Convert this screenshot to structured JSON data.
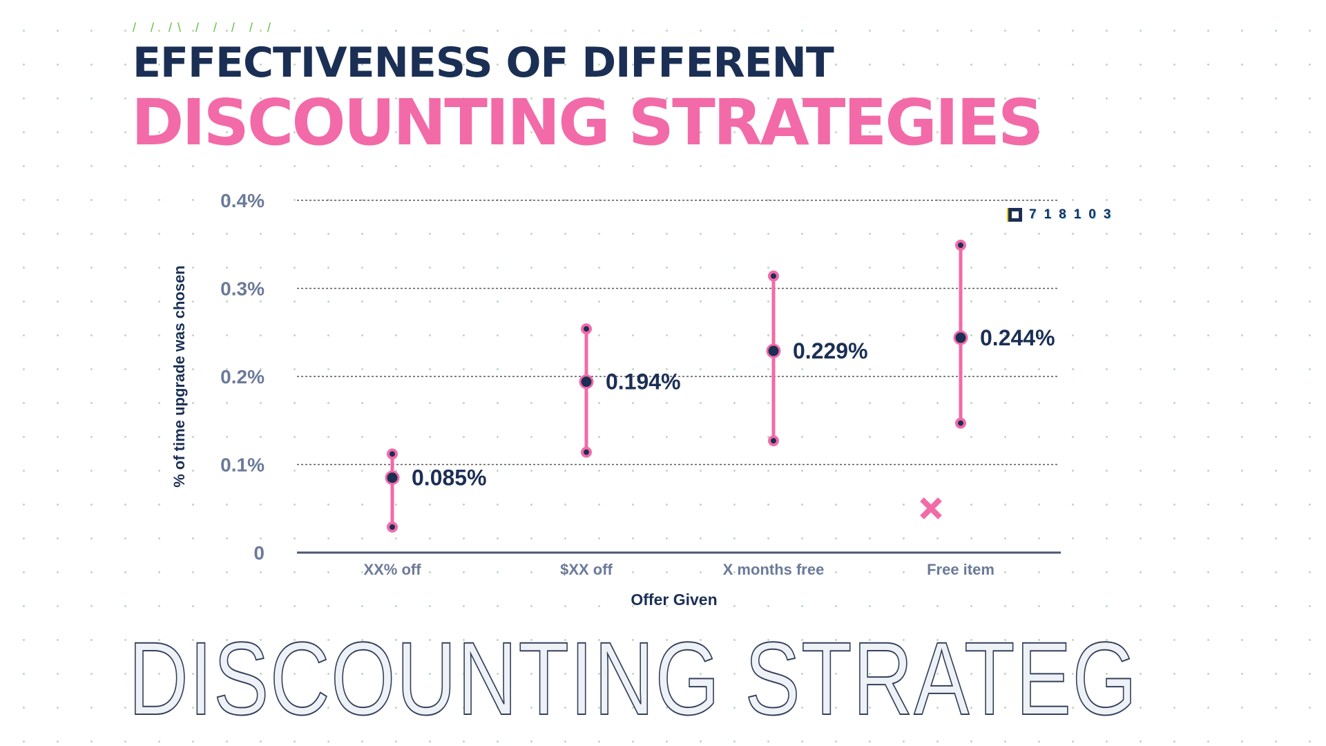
{
  "header": {
    "title_line1": "EFFECTIVENESS OF DIFFERENT",
    "title_line2": "DISCOUNTING STRATEGIES",
    "decoration": "/ / /\\ / / / / /"
  },
  "footer": {
    "outline_text": "DISCOUNTING STRATEG"
  },
  "legend": {
    "code": "718103"
  },
  "colors": {
    "navy": "#1b2f55",
    "pink": "#f36aa8",
    "axis_text": "#6b7a99"
  },
  "chart_data": {
    "type": "scatter",
    "title": "",
    "xlabel": "Offer Given",
    "ylabel": "% of time upgrade was chosen",
    "categories": [
      "XX% off",
      "$XX off",
      "X months free",
      "Free item"
    ],
    "values": [
      0.085,
      0.194,
      0.229,
      0.244
    ],
    "value_labels": [
      "0.085%",
      "0.194%",
      "0.229%",
      "0.244%"
    ],
    "error_low": [
      0.029,
      0.114,
      0.127,
      0.147
    ],
    "error_high": [
      0.112,
      0.254,
      0.314,
      0.349
    ],
    "ylim": [
      0,
      0.4
    ],
    "yticks": [
      0,
      0.1,
      0.2,
      0.3,
      0.4
    ],
    "ytick_labels": [
      "0",
      "0.1%",
      "0.2%",
      "0.3%",
      "0.4%"
    ],
    "grid": "horizontal dashed",
    "marker_x_icon": "x-mark-icon"
  }
}
